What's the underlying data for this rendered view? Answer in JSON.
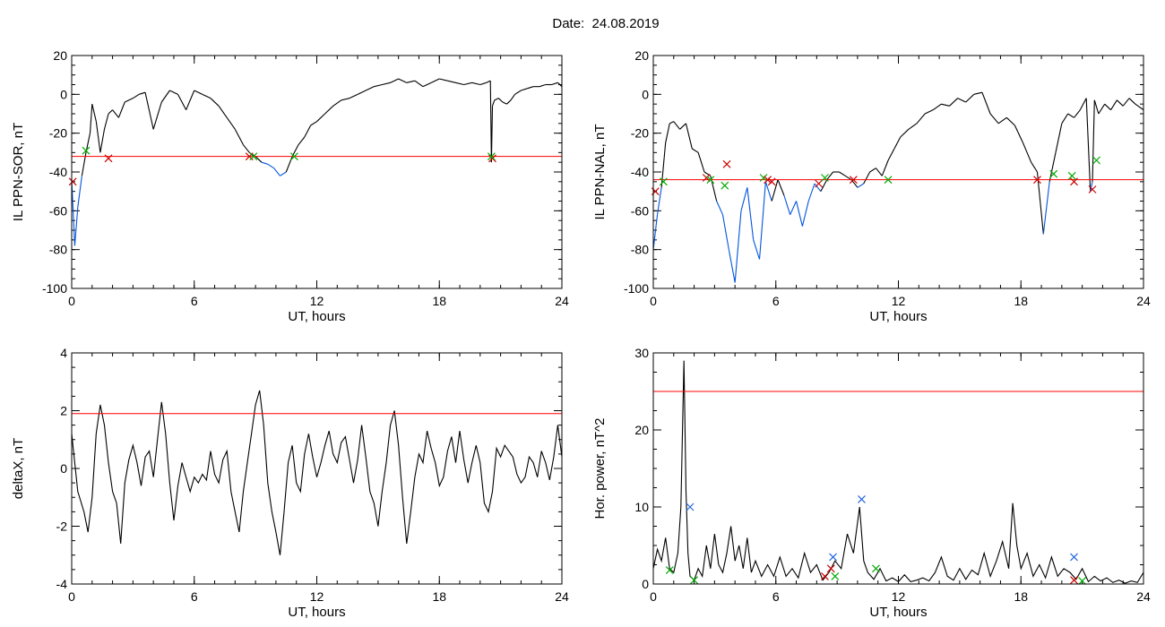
{
  "title": "Date:  24.08.2019",
  "chart_data": [
    {
      "type": "line",
      "id": "sor",
      "xlabel": "UT, hours",
      "ylabel": "IL PPN-SOR, nT",
      "xlim": [
        0,
        24
      ],
      "ylim": [
        -100,
        20
      ],
      "xticks": [
        0,
        6,
        12,
        18,
        24
      ],
      "yticks": [
        -100,
        -80,
        -60,
        -40,
        -20,
        0,
        20
      ],
      "threshold": -32,
      "threshold_color": "#ff0000",
      "line_color": "#000000",
      "below_color": "#0055dd",
      "x": [
        0,
        0.15,
        0.3,
        0.5,
        0.7,
        0.9,
        1.0,
        1.2,
        1.4,
        1.6,
        1.8,
        2.0,
        2.3,
        2.6,
        3.0,
        3.3,
        3.6,
        4.0,
        4.4,
        4.8,
        5.2,
        5.6,
        6.0,
        6.4,
        6.8,
        7.2,
        7.6,
        8.0,
        8.4,
        8.7,
        9.0,
        9.3,
        9.6,
        9.9,
        10.2,
        10.5,
        10.8,
        11.1,
        11.4,
        11.7,
        12.0,
        12.4,
        12.8,
        13.2,
        13.6,
        14.0,
        14.4,
        14.8,
        15.2,
        15.6,
        16.0,
        16.4,
        16.8,
        17.2,
        17.6,
        18.0,
        18.4,
        18.8,
        19.2,
        19.6,
        20.0,
        20.3,
        20.5,
        20.55,
        20.6,
        20.7,
        20.9,
        21.1,
        21.3,
        21.5,
        21.7,
        22.0,
        22.3,
        22.6,
        22.9,
        23.2,
        23.5,
        23.8,
        24.0
      ],
      "y": [
        -44,
        -78,
        -58,
        -42,
        -30,
        -20,
        -5,
        -14,
        -30,
        -18,
        -10,
        -8,
        -12,
        -4,
        -2,
        0,
        1,
        -18,
        -4,
        2,
        0,
        -8,
        2,
        0,
        -2,
        -6,
        -12,
        -18,
        -26,
        -30,
        -32,
        -35,
        -36,
        -38,
        -42,
        -40,
        -32,
        -26,
        -22,
        -16,
        -14,
        -10,
        -6,
        -3,
        -2,
        0,
        2,
        4,
        5,
        6,
        8,
        6,
        7,
        4,
        6,
        8,
        7,
        6,
        5,
        6,
        5,
        6,
        7,
        -35,
        -6,
        -3,
        -2,
        -4,
        -5,
        -3,
        0,
        2,
        3,
        4,
        4,
        5,
        5,
        6,
        4
      ],
      "markers": [
        {
          "x": 0.7,
          "y": -29,
          "color": "#00aa00"
        },
        {
          "x": 1.8,
          "y": -33,
          "color": "#cc0000"
        },
        {
          "x": 8.7,
          "y": -32,
          "color": "#cc0000"
        },
        {
          "x": 8.9,
          "y": -32,
          "color": "#00aa00"
        },
        {
          "x": 10.9,
          "y": -32,
          "color": "#00aa00"
        },
        {
          "x": 20.6,
          "y": -33,
          "color": "#cc0000"
        },
        {
          "x": 20.55,
          "y": -32,
          "color": "#00aa00"
        },
        {
          "x": 0.05,
          "y": -45,
          "color": "#cc0000"
        }
      ]
    },
    {
      "type": "line",
      "id": "nal",
      "xlabel": "UT, hours",
      "ylabel": "IL PPN-NAL, nT",
      "xlim": [
        0,
        24
      ],
      "ylim": [
        -100,
        20
      ],
      "xticks": [
        0,
        6,
        12,
        18,
        24
      ],
      "yticks": [
        -100,
        -80,
        -60,
        -40,
        -20,
        0,
        20
      ],
      "threshold": -44,
      "threshold_color": "#ff0000",
      "line_color": "#000000",
      "below_color": "#0055dd",
      "x": [
        0,
        0.2,
        0.4,
        0.6,
        0.8,
        1.0,
        1.3,
        1.6,
        1.9,
        2.2,
        2.5,
        2.8,
        3.1,
        3.4,
        3.7,
        4.0,
        4.3,
        4.6,
        4.9,
        5.2,
        5.5,
        5.8,
        6.1,
        6.4,
        6.7,
        7.0,
        7.3,
        7.6,
        7.9,
        8.2,
        8.5,
        8.8,
        9.1,
        9.4,
        9.7,
        10.0,
        10.3,
        10.6,
        10.9,
        11.2,
        11.5,
        11.8,
        12.1,
        12.5,
        12.9,
        13.3,
        13.7,
        14.1,
        14.5,
        14.9,
        15.3,
        15.7,
        16.1,
        16.5,
        16.9,
        17.3,
        17.7,
        18.1,
        18.5,
        18.8,
        19.1,
        19.4,
        19.7,
        20.0,
        20.3,
        20.6,
        20.9,
        21.2,
        21.4,
        21.5,
        21.6,
        21.8,
        22.1,
        22.4,
        22.7,
        23.0,
        23.3,
        23.6,
        24.0
      ],
      "y": [
        -80,
        -62,
        -48,
        -25,
        -15,
        -14,
        -18,
        -15,
        -28,
        -30,
        -40,
        -42,
        -55,
        -62,
        -80,
        -97,
        -60,
        -48,
        -75,
        -85,
        -45,
        -55,
        -44,
        -52,
        -62,
        -55,
        -68,
        -55,
        -46,
        -50,
        -44,
        -40,
        -40,
        -42,
        -44,
        -48,
        -46,
        -40,
        -38,
        -42,
        -34,
        -28,
        -22,
        -18,
        -15,
        -10,
        -8,
        -5,
        -6,
        -2,
        -4,
        0,
        1,
        -10,
        -15,
        -12,
        -16,
        -25,
        -35,
        -40,
        -72,
        -45,
        -30,
        -15,
        -10,
        -12,
        -8,
        -2,
        -50,
        -45,
        -3,
        -10,
        -5,
        -8,
        -3,
        -6,
        -2,
        -5,
        -8
      ],
      "markers": [
        {
          "x": 0.1,
          "y": -50,
          "color": "#cc0000"
        },
        {
          "x": 0.5,
          "y": -45,
          "color": "#00aa00"
        },
        {
          "x": 2.6,
          "y": -43,
          "color": "#cc0000"
        },
        {
          "x": 2.8,
          "y": -44,
          "color": "#00aa00"
        },
        {
          "x": 3.6,
          "y": -36,
          "color": "#cc0000"
        },
        {
          "x": 3.5,
          "y": -47,
          "color": "#00aa00"
        },
        {
          "x": 5.4,
          "y": -43,
          "color": "#00aa00"
        },
        {
          "x": 5.6,
          "y": -44,
          "color": "#cc0000"
        },
        {
          "x": 5.8,
          "y": -45,
          "color": "#cc0000"
        },
        {
          "x": 8.1,
          "y": -46,
          "color": "#cc0000"
        },
        {
          "x": 8.4,
          "y": -43,
          "color": "#00aa00"
        },
        {
          "x": 9.8,
          "y": -44,
          "color": "#cc0000"
        },
        {
          "x": 11.5,
          "y": -44,
          "color": "#00aa00"
        },
        {
          "x": 18.8,
          "y": -44,
          "color": "#cc0000"
        },
        {
          "x": 19.6,
          "y": -41,
          "color": "#00aa00"
        },
        {
          "x": 20.6,
          "y": -45,
          "color": "#cc0000"
        },
        {
          "x": 20.5,
          "y": -42,
          "color": "#00aa00"
        },
        {
          "x": 21.5,
          "y": -49,
          "color": "#cc0000"
        },
        {
          "x": 21.7,
          "y": -34,
          "color": "#00aa00"
        }
      ]
    },
    {
      "type": "line",
      "id": "deltax",
      "xlabel": "UT, hours",
      "ylabel": "deltaX, nT",
      "xlim": [
        0,
        24
      ],
      "ylim": [
        -4,
        4
      ],
      "xticks": [
        0,
        6,
        12,
        18,
        24
      ],
      "yticks": [
        -4,
        -2,
        0,
        2,
        4
      ],
      "threshold": 1.9,
      "threshold_color": "#ff0000",
      "line_color": "#000000",
      "x": [
        0,
        0.3,
        0.6,
        0.8,
        1.0,
        1.2,
        1.4,
        1.6,
        1.8,
        2.0,
        2.2,
        2.4,
        2.6,
        2.8,
        3.0,
        3.2,
        3.4,
        3.6,
        3.8,
        4.0,
        4.2,
        4.4,
        4.6,
        4.8,
        5.0,
        5.2,
        5.4,
        5.6,
        5.8,
        6.0,
        6.2,
        6.4,
        6.6,
        6.8,
        7.0,
        7.2,
        7.4,
        7.6,
        7.8,
        8.0,
        8.2,
        8.4,
        8.6,
        8.8,
        9.0,
        9.2,
        9.4,
        9.6,
        9.8,
        10.0,
        10.2,
        10.4,
        10.6,
        10.8,
        11.0,
        11.2,
        11.4,
        11.6,
        11.8,
        12.0,
        12.2,
        12.4,
        12.6,
        12.8,
        13.0,
        13.2,
        13.4,
        13.6,
        13.8,
        14.0,
        14.2,
        14.4,
        14.6,
        14.8,
        15.0,
        15.2,
        15.4,
        15.6,
        15.8,
        16.0,
        16.2,
        16.4,
        16.6,
        16.8,
        17.0,
        17.2,
        17.4,
        17.6,
        17.8,
        18.0,
        18.2,
        18.4,
        18.6,
        18.8,
        19.0,
        19.2,
        19.4,
        19.6,
        19.8,
        20.0,
        20.2,
        20.4,
        20.6,
        20.8,
        21.0,
        21.2,
        21.4,
        21.6,
        21.8,
        22.0,
        22.2,
        22.4,
        22.6,
        22.8,
        23.0,
        23.2,
        23.4,
        23.6,
        23.8,
        24.0
      ],
      "y": [
        1.2,
        -0.8,
        -1.5,
        -2.2,
        -1.0,
        1.2,
        2.2,
        1.5,
        0.2,
        -0.8,
        -1.2,
        -2.6,
        -0.5,
        0.3,
        0.8,
        0.2,
        -0.6,
        0.4,
        0.6,
        -0.3,
        1.0,
        2.3,
        1.2,
        -0.5,
        -1.8,
        -0.6,
        0.2,
        -0.3,
        -0.8,
        -0.3,
        -0.5,
        -0.2,
        -0.4,
        0.6,
        -0.2,
        -0.5,
        0.3,
        0.6,
        -0.8,
        -1.5,
        -2.2,
        -0.8,
        0.2,
        1.2,
        2.2,
        2.7,
        1.5,
        -0.5,
        -1.5,
        -2.2,
        -3.0,
        -1.5,
        0.2,
        0.8,
        -0.5,
        -0.8,
        0.5,
        1.2,
        0.4,
        -0.3,
        0.2,
        0.8,
        1.3,
        0.5,
        0.2,
        0.9,
        1.1,
        0.3,
        -0.5,
        0.3,
        1.5,
        0.4,
        -0.8,
        -1.2,
        -2.0,
        -0.8,
        0.2,
        1.5,
        2.0,
        0.8,
        -1.0,
        -2.6,
        -1.5,
        -0.3,
        0.5,
        0.2,
        1.3,
        0.7,
        0.2,
        -0.6,
        -0.3,
        0.6,
        1.1,
        0.2,
        1.3,
        0.3,
        -0.5,
        0.2,
        0.8,
        0.2,
        -1.2,
        -1.5,
        -0.8,
        0.7,
        0.4,
        0.8,
        0.6,
        0.4,
        -0.2,
        -0.5,
        -0.3,
        0.4,
        0.2,
        -0.3,
        0.6,
        0.2,
        -0.4,
        0.4,
        1.5,
        0.4
      ],
      "markers": []
    },
    {
      "type": "line",
      "id": "power",
      "xlabel": "UT, hours",
      "ylabel": "Hor. power, nT^2",
      "xlim": [
        0,
        24
      ],
      "ylim": [
        0,
        30
      ],
      "xticks": [
        0,
        6,
        12,
        18,
        24
      ],
      "yticks": [
        0,
        10,
        20,
        30
      ],
      "threshold": 25,
      "threshold_color": "#ff0000",
      "line_color": "#000000",
      "x": [
        0,
        0.2,
        0.4,
        0.6,
        0.8,
        1.0,
        1.2,
        1.35,
        1.5,
        1.6,
        1.7,
        1.8,
        2.0,
        2.2,
        2.4,
        2.6,
        2.8,
        3.0,
        3.2,
        3.4,
        3.6,
        3.8,
        4.0,
        4.2,
        4.4,
        4.6,
        4.8,
        5.0,
        5.3,
        5.6,
        5.9,
        6.2,
        6.5,
        6.8,
        7.1,
        7.4,
        7.7,
        8.0,
        8.3,
        8.6,
        8.9,
        9.2,
        9.5,
        9.8,
        10.1,
        10.3,
        10.5,
        10.8,
        11.1,
        11.4,
        11.7,
        12.0,
        12.3,
        12.6,
        12.9,
        13.2,
        13.5,
        13.8,
        14.1,
        14.4,
        14.7,
        15.0,
        15.3,
        15.6,
        15.9,
        16.2,
        16.5,
        16.8,
        17.1,
        17.4,
        17.6,
        17.8,
        18.0,
        18.3,
        18.6,
        18.9,
        19.2,
        19.5,
        19.8,
        20.1,
        20.4,
        20.7,
        21.0,
        21.3,
        21.6,
        21.9,
        22.2,
        22.5,
        22.8,
        23.1,
        23.4,
        23.7,
        24.0
      ],
      "y": [
        2.0,
        4.5,
        3.0,
        6.0,
        2.0,
        1.5,
        4.0,
        10.0,
        29.0,
        12.0,
        4.0,
        1.0,
        0.5,
        2.0,
        1.0,
        5.0,
        2.0,
        6.5,
        2.5,
        1.5,
        4.0,
        7.5,
        3.0,
        5.0,
        2.0,
        6.0,
        1.5,
        3.0,
        1.0,
        2.5,
        1.0,
        3.5,
        1.0,
        2.0,
        0.8,
        4.0,
        1.5,
        2.5,
        0.5,
        1.5,
        3.0,
        2.0,
        6.5,
        4.0,
        10.0,
        3.0,
        1.5,
        0.6,
        2.0,
        0.4,
        0.8,
        0.3,
        1.2,
        0.3,
        0.5,
        0.8,
        0.4,
        1.5,
        3.5,
        1.0,
        0.5,
        2.0,
        0.6,
        1.8,
        1.2,
        4.0,
        1.0,
        3.0,
        5.5,
        2.0,
        10.5,
        5.0,
        2.0,
        4.0,
        1.0,
        2.5,
        0.8,
        3.5,
        1.0,
        2.0,
        1.5,
        0.6,
        2.0,
        0.3,
        1.0,
        0.4,
        0.8,
        0.2,
        0.5,
        0.1,
        0.4,
        0.2,
        1.5
      ],
      "markers": [
        {
          "x": 0.8,
          "y": 1.8,
          "color": "#00aa00"
        },
        {
          "x": 1.8,
          "y": 10.0,
          "color": "#2266dd"
        },
        {
          "x": 2.0,
          "y": 0.5,
          "color": "#00aa00"
        },
        {
          "x": 8.4,
          "y": 1.0,
          "color": "#cc0000"
        },
        {
          "x": 8.7,
          "y": 2.0,
          "color": "#cc0000"
        },
        {
          "x": 8.8,
          "y": 3.5,
          "color": "#2266dd"
        },
        {
          "x": 8.9,
          "y": 1.0,
          "color": "#00aa00"
        },
        {
          "x": 10.2,
          "y": 11.0,
          "color": "#2266dd"
        },
        {
          "x": 10.9,
          "y": 2.0,
          "color": "#00aa00"
        },
        {
          "x": 20.6,
          "y": 0.5,
          "color": "#cc0000"
        },
        {
          "x": 20.6,
          "y": 3.5,
          "color": "#2266dd"
        },
        {
          "x": 21.0,
          "y": 0.4,
          "color": "#00aa00"
        }
      ]
    }
  ]
}
